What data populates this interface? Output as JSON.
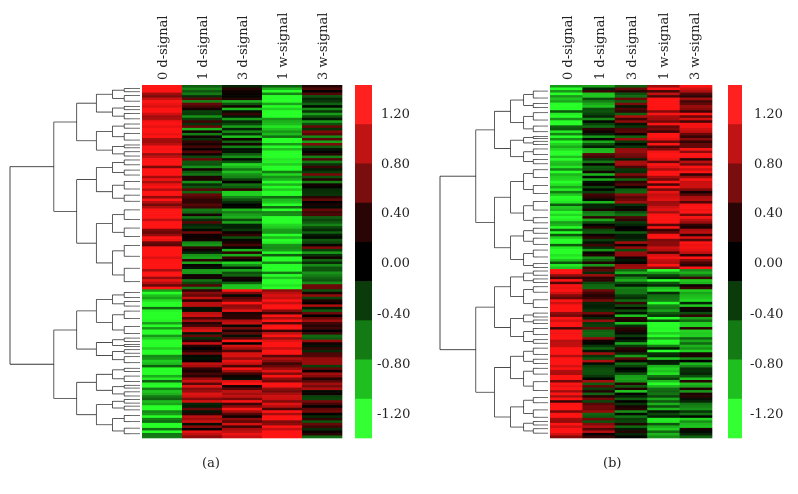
{
  "chart_data": [
    {
      "type": "heatmap",
      "panel_label": "(a)",
      "columns": [
        "0 d-signal",
        "1 d-signal",
        "3 d-signal",
        "1 w-signal",
        "3 w-signal"
      ],
      "colorbar": {
        "range": [
          -1.4,
          1.4
        ],
        "ticks": [
          1.2,
          0.8,
          0.4,
          0.0,
          -0.4,
          -0.8,
          -1.2
        ],
        "tick_labels": [
          "1.20",
          "0.80",
          "0.40",
          "0.00",
          "-0.40",
          "-0.80",
          "-1.20"
        ],
        "colors_top_to_bottom": [
          "#ff2020",
          "#c01414",
          "#7a0d0d",
          "#2a0505",
          "#000000",
          "#0b3a0b",
          "#147a14",
          "#1fbf1f",
          "#33ff33"
        ]
      },
      "row_clusters": [
        {
          "fraction": 0.58,
          "profile": [
            1.3,
            -0.2,
            -0.4,
            -1.3,
            -0.1
          ]
        },
        {
          "fraction": 0.42,
          "profile": [
            -1.3,
            0.5,
            0.7,
            1.1,
            0.2
          ]
        }
      ]
    },
    {
      "type": "heatmap",
      "panel_label": "(b)",
      "columns": [
        "0 d-signal",
        "1 d-signal",
        "3 d-signal",
        "1 w-signal",
        "3 w-signal"
      ],
      "colorbar": {
        "range": [
          -1.4,
          1.4
        ],
        "ticks": [
          1.2,
          0.8,
          0.4,
          0.0,
          -0.4,
          -0.8,
          -1.2
        ],
        "tick_labels": [
          "1.20",
          "0.80",
          "0.40",
          "0.00",
          "-0.40",
          "-0.80",
          "-1.20"
        ],
        "colors_top_to_bottom": [
          "#ff2020",
          "#c01414",
          "#7a0d0d",
          "#2a0505",
          "#000000",
          "#0b3a0b",
          "#147a14",
          "#1fbf1f",
          "#33ff33"
        ]
      },
      "row_clusters": [
        {
          "fraction": 0.52,
          "profile": [
            -1.2,
            -0.3,
            0.2,
            1.1,
            0.9
          ]
        },
        {
          "fraction": 0.48,
          "profile": [
            1.1,
            0.2,
            -0.3,
            -0.9,
            -0.4
          ]
        }
      ]
    }
  ]
}
